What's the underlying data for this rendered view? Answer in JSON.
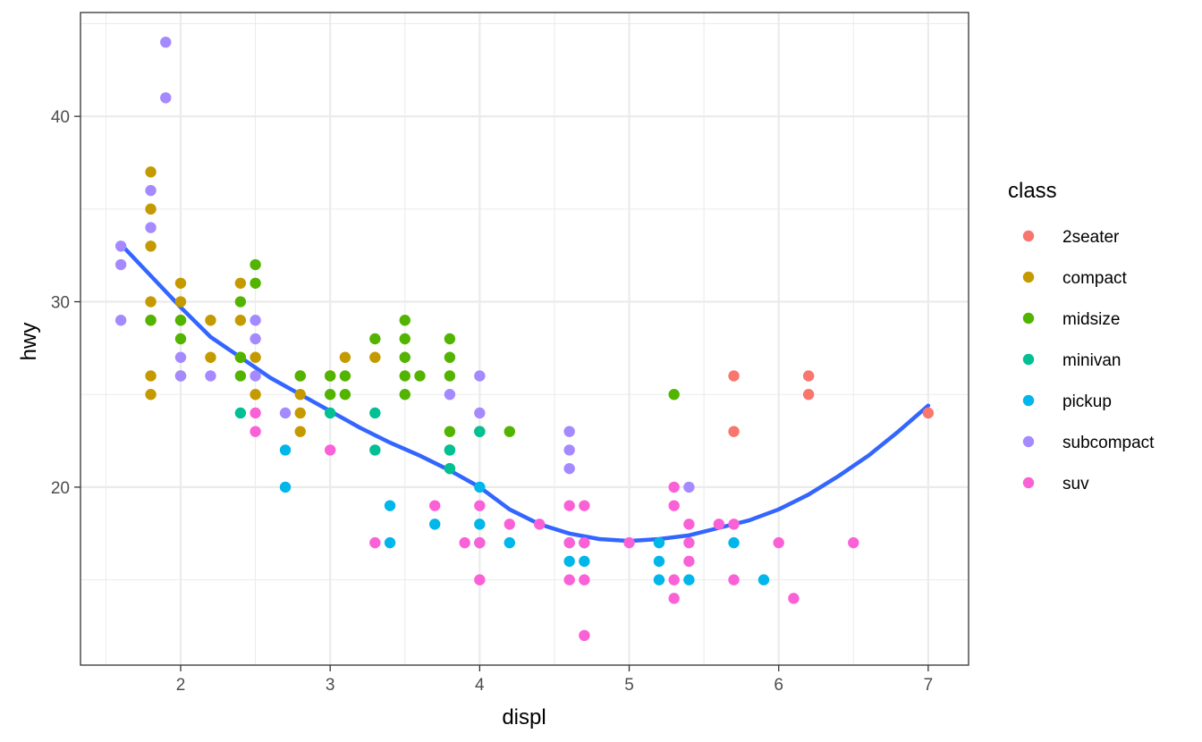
{
  "chart_data": {
    "type": "scatter",
    "title": "",
    "xlabel": "displ",
    "ylabel": "hwy",
    "xlim": [
      1.33,
      7.27
    ],
    "ylim": [
      10.4,
      45.6
    ],
    "x_ticks": [
      2,
      3,
      4,
      5,
      6,
      7
    ],
    "x_tick_labels": [
      "2",
      "3",
      "4",
      "5",
      "6",
      "7"
    ],
    "y_ticks": [
      20,
      30,
      40
    ],
    "y_tick_labels": [
      "20",
      "30",
      "40"
    ],
    "x_minor_ticks": [
      1.5,
      2.5,
      3.5,
      4.5,
      5.5,
      6.5
    ],
    "y_minor_ticks": [
      15,
      25,
      35,
      45
    ],
    "grid": true,
    "legend": {
      "title": "class",
      "placement": "right",
      "entries": [
        "2seater",
        "compact",
        "midsize",
        "minivan",
        "pickup",
        "subcompact",
        "suv"
      ]
    },
    "colors": {
      "2seater": "#F8766D",
      "compact": "#C49A00",
      "midsize": "#53B400",
      "minivan": "#00C094",
      "pickup": "#00B6EB",
      "subcompact": "#A58AFF",
      "suv": "#FB61D7",
      "smooth": "#3366FF"
    },
    "series": [
      {
        "name": "2seater",
        "points": [
          [
            5.7,
            26
          ],
          [
            5.7,
            23
          ],
          [
            6.2,
            26
          ],
          [
            6.2,
            25
          ],
          [
            7.0,
            24
          ]
        ]
      },
      {
        "name": "compact",
        "points": [
          [
            1.8,
            37
          ],
          [
            1.8,
            35
          ],
          [
            1.8,
            33
          ],
          [
            1.8,
            30
          ],
          [
            1.8,
            29
          ],
          [
            1.8,
            26
          ],
          [
            1.8,
            25
          ],
          [
            2.0,
            31
          ],
          [
            2.0,
            30
          ],
          [
            2.0,
            29
          ],
          [
            2.2,
            29
          ],
          [
            2.2,
            27
          ],
          [
            2.4,
            31
          ],
          [
            2.4,
            29
          ],
          [
            2.4,
            27
          ],
          [
            2.5,
            27
          ],
          [
            2.5,
            25
          ],
          [
            2.8,
            26
          ],
          [
            2.8,
            25
          ],
          [
            2.8,
            24
          ],
          [
            2.8,
            23
          ],
          [
            3.0,
            26
          ],
          [
            3.1,
            27
          ],
          [
            3.3,
            27
          ]
        ]
      },
      {
        "name": "midsize",
        "points": [
          [
            1.8,
            29
          ],
          [
            2.0,
            29
          ],
          [
            2.0,
            28
          ],
          [
            2.0,
            26
          ],
          [
            2.4,
            30
          ],
          [
            2.4,
            27
          ],
          [
            2.4,
            26
          ],
          [
            2.5,
            32
          ],
          [
            2.5,
            31
          ],
          [
            2.8,
            26
          ],
          [
            3.0,
            26
          ],
          [
            3.0,
            25
          ],
          [
            3.1,
            26
          ],
          [
            3.1,
            25
          ],
          [
            3.3,
            28
          ],
          [
            3.5,
            29
          ],
          [
            3.5,
            28
          ],
          [
            3.5,
            27
          ],
          [
            3.5,
            26
          ],
          [
            3.5,
            25
          ],
          [
            3.6,
            26
          ],
          [
            3.8,
            28
          ],
          [
            3.8,
            27
          ],
          [
            3.8,
            26
          ],
          [
            3.8,
            23
          ],
          [
            3.8,
            22
          ],
          [
            3.8,
            21
          ],
          [
            4.0,
            23
          ],
          [
            4.2,
            23
          ],
          [
            5.3,
            25
          ]
        ]
      },
      {
        "name": "minivan",
        "points": [
          [
            2.4,
            24
          ],
          [
            3.0,
            24
          ],
          [
            3.3,
            24
          ],
          [
            3.3,
            22
          ],
          [
            3.8,
            22
          ],
          [
            3.8,
            21
          ],
          [
            4.0,
            23
          ]
        ]
      },
      {
        "name": "pickup",
        "points": [
          [
            2.7,
            22
          ],
          [
            2.7,
            20
          ],
          [
            3.4,
            19
          ],
          [
            3.4,
            17
          ],
          [
            3.7,
            18
          ],
          [
            4.0,
            20
          ],
          [
            4.0,
            18
          ],
          [
            4.0,
            17
          ],
          [
            4.2,
            17
          ],
          [
            4.6,
            17
          ],
          [
            4.6,
            16
          ],
          [
            4.7,
            17
          ],
          [
            4.7,
            16
          ],
          [
            5.2,
            17
          ],
          [
            5.2,
            16
          ],
          [
            5.2,
            15
          ],
          [
            5.4,
            15
          ],
          [
            5.7,
            17
          ],
          [
            5.9,
            15
          ]
        ]
      },
      {
        "name": "subcompact",
        "points": [
          [
            1.6,
            33
          ],
          [
            1.6,
            32
          ],
          [
            1.6,
            29
          ],
          [
            1.8,
            36
          ],
          [
            1.8,
            34
          ],
          [
            1.9,
            44
          ],
          [
            1.9,
            41
          ],
          [
            2.0,
            27
          ],
          [
            2.0,
            26
          ],
          [
            2.2,
            26
          ],
          [
            2.5,
            29
          ],
          [
            2.5,
            28
          ],
          [
            2.5,
            26
          ],
          [
            2.7,
            24
          ],
          [
            3.8,
            25
          ],
          [
            4.0,
            26
          ],
          [
            4.0,
            24
          ],
          [
            4.6,
            23
          ],
          [
            4.6,
            22
          ],
          [
            4.6,
            21
          ],
          [
            5.4,
            20
          ]
        ]
      },
      {
        "name": "suv",
        "points": [
          [
            2.5,
            24
          ],
          [
            2.5,
            23
          ],
          [
            3.0,
            22
          ],
          [
            3.3,
            17
          ],
          [
            3.7,
            19
          ],
          [
            3.9,
            17
          ],
          [
            4.0,
            19
          ],
          [
            4.0,
            17
          ],
          [
            4.0,
            15
          ],
          [
            4.2,
            18
          ],
          [
            4.4,
            18
          ],
          [
            4.6,
            19
          ],
          [
            4.6,
            17
          ],
          [
            4.6,
            15
          ],
          [
            4.7,
            19
          ],
          [
            4.7,
            17
          ],
          [
            4.7,
            15
          ],
          [
            4.7,
            12
          ],
          [
            5.0,
            17
          ],
          [
            5.3,
            20
          ],
          [
            5.3,
            19
          ],
          [
            5.3,
            15
          ],
          [
            5.3,
            14
          ],
          [
            5.4,
            18
          ],
          [
            5.4,
            17
          ],
          [
            5.4,
            16
          ],
          [
            5.6,
            18
          ],
          [
            5.7,
            18
          ],
          [
            5.7,
            15
          ],
          [
            6.0,
            17
          ],
          [
            6.1,
            14
          ],
          [
            6.5,
            17
          ]
        ]
      }
    ],
    "smooth": {
      "x": [
        1.6,
        1.8,
        2.0,
        2.2,
        2.4,
        2.6,
        2.8,
        3.0,
        3.2,
        3.4,
        3.6,
        3.8,
        4.0,
        4.2,
        4.4,
        4.6,
        4.8,
        5.0,
        5.2,
        5.4,
        5.6,
        5.8,
        6.0,
        6.2,
        6.4,
        6.6,
        6.8,
        7.0
      ],
      "y": [
        33.1,
        31.4,
        29.7,
        28.1,
        27.0,
        25.9,
        25.0,
        24.1,
        23.2,
        22.4,
        21.7,
        20.9,
        20.0,
        18.8,
        18.0,
        17.5,
        17.2,
        17.1,
        17.2,
        17.4,
        17.8,
        18.2,
        18.8,
        19.6,
        20.6,
        21.7,
        23.0,
        24.4
      ]
    }
  }
}
